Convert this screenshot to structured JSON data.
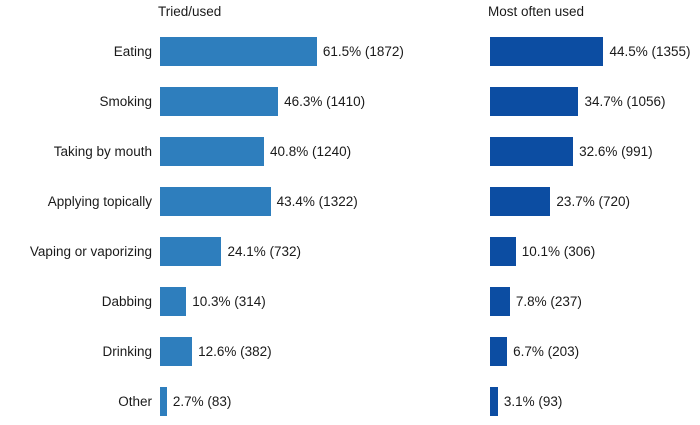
{
  "chart_data": {
    "type": "bar",
    "orientation": "horizontal",
    "categories": [
      "Eating",
      "Smoking",
      "Taking by mouth",
      "Applying topically",
      "Vaping or vaporizing",
      "Dabbing",
      "Drinking",
      "Other"
    ],
    "series": [
      {
        "name": "Tried/used",
        "color": "#2e7ebd",
        "values_pct": [
          61.5,
          46.3,
          40.8,
          43.4,
          24.1,
          10.3,
          12.6,
          2.7
        ],
        "counts": [
          1872,
          1410,
          1240,
          1322,
          732,
          314,
          382,
          83
        ],
        "value_labels": [
          "61.5% (1872)",
          "46.3% (1410)",
          "40.8% (1240)",
          "43.4% (1322)",
          "24.1% (732)",
          "10.3% (314)",
          "12.6% (382)",
          "2.7% (83)"
        ]
      },
      {
        "name": "Most often used",
        "color": "#0c4da2",
        "values_pct": [
          44.5,
          34.7,
          32.6,
          23.7,
          10.1,
          7.8,
          6.7,
          3.1
        ],
        "counts": [
          1355,
          1056,
          991,
          720,
          306,
          237,
          203,
          93
        ],
        "value_labels": [
          "44.5% (1355)",
          "34.7% (1056)",
          "32.6% (991)",
          "23.7% (720)",
          "10.1% (306)",
          "7.8% (237)",
          "6.7% (203)",
          "3.1% (93)"
        ]
      }
    ],
    "xlim": [
      0,
      65
    ],
    "grid": false,
    "legend_position": "none",
    "value_label_format": "pct% (count)"
  },
  "colors": {
    "tried_used_bar": "#2e7ebd",
    "most_often_used_bar": "#0c4da2",
    "text": "#1a1a1a",
    "background": "#ffffff"
  }
}
